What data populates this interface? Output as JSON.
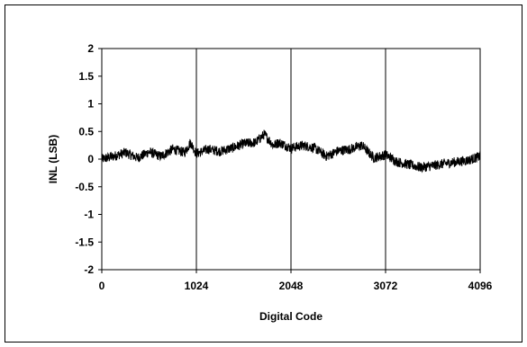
{
  "chart_data": {
    "type": "line",
    "title": "",
    "xlabel": "Digital Code",
    "ylabel": "INL (LSB)",
    "xlim": [
      0,
      4096
    ],
    "ylim": [
      -2,
      2
    ],
    "x_ticks": [
      0,
      1024,
      2048,
      3072,
      4096
    ],
    "x_tick_labels": [
      "0",
      "1024",
      "2048",
      "3072",
      "4096"
    ],
    "y_ticks": [
      2,
      1.5,
      1,
      0.5,
      0,
      -0.5,
      -1,
      -1.5,
      -2
    ],
    "y_tick_labels": [
      "2",
      "1.5",
      "1",
      "0.5",
      "0",
      "-0.5",
      "-1",
      "-1.5",
      "-2"
    ],
    "grid": {
      "vertical": true,
      "horizontal": false
    },
    "legend": "none",
    "line_color": "#000000",
    "noise_amplitude_lsb": 0.09,
    "series": [
      {
        "values_trend": [
          {
            "x": 0,
            "y": 0.0
          },
          {
            "x": 128,
            "y": 0.05
          },
          {
            "x": 256,
            "y": 0.12
          },
          {
            "x": 384,
            "y": 0.02
          },
          {
            "x": 512,
            "y": 0.13
          },
          {
            "x": 640,
            "y": 0.05
          },
          {
            "x": 768,
            "y": 0.18
          },
          {
            "x": 896,
            "y": 0.12
          },
          {
            "x": 960,
            "y": 0.3
          },
          {
            "x": 1024,
            "y": 0.1
          },
          {
            "x": 1152,
            "y": 0.18
          },
          {
            "x": 1280,
            "y": 0.14
          },
          {
            "x": 1408,
            "y": 0.2
          },
          {
            "x": 1536,
            "y": 0.28
          },
          {
            "x": 1664,
            "y": 0.3
          },
          {
            "x": 1760,
            "y": 0.45
          },
          {
            "x": 1856,
            "y": 0.25
          },
          {
            "x": 1920,
            "y": 0.3
          },
          {
            "x": 2048,
            "y": 0.2
          },
          {
            "x": 2176,
            "y": 0.25
          },
          {
            "x": 2304,
            "y": 0.2
          },
          {
            "x": 2432,
            "y": 0.05
          },
          {
            "x": 2560,
            "y": 0.15
          },
          {
            "x": 2688,
            "y": 0.18
          },
          {
            "x": 2816,
            "y": 0.25
          },
          {
            "x": 2944,
            "y": 0.02
          },
          {
            "x": 3072,
            "y": 0.08
          },
          {
            "x": 3200,
            "y": -0.05
          },
          {
            "x": 3328,
            "y": -0.1
          },
          {
            "x": 3456,
            "y": -0.15
          },
          {
            "x": 3584,
            "y": -0.12
          },
          {
            "x": 3712,
            "y": -0.08
          },
          {
            "x": 3840,
            "y": -0.05
          },
          {
            "x": 3968,
            "y": -0.02
          },
          {
            "x": 4096,
            "y": 0.05
          }
        ]
      }
    ]
  }
}
